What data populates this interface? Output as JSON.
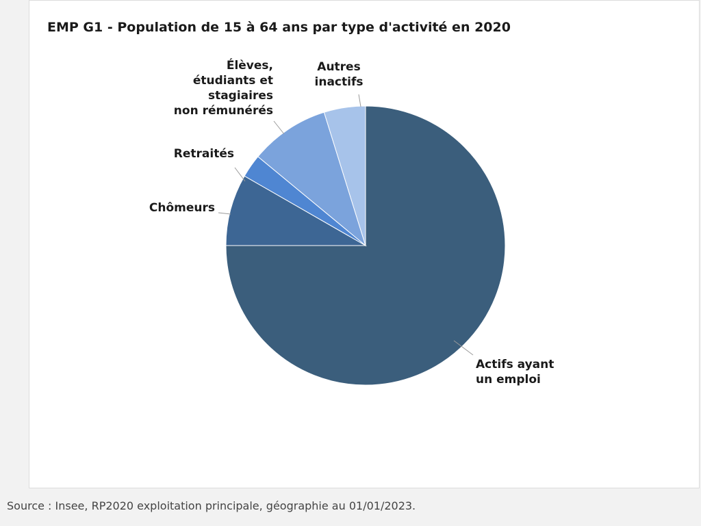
{
  "chart_data": {
    "type": "pie",
    "title": "EMP G1 - Population de 15 à 64 ans par type d'activité en 2020",
    "slices": [
      {
        "label": "Actifs ayant un emploi",
        "lines": [
          "Actifs ayant",
          "un emploi"
        ],
        "value": 75.0,
        "color": "#3b5e7c"
      },
      {
        "label": "Chômeurs",
        "lines": [
          "Chômeurs"
        ],
        "value": 8.3,
        "color": "#3d6694"
      },
      {
        "label": "Retraités",
        "lines": [
          "Retraités"
        ],
        "value": 2.7,
        "color": "#4f86d2"
      },
      {
        "label": "Élèves, étudiants et stagiaires non rémunérés",
        "lines": [
          "Élèves,",
          "étudiants et",
          "stagiaires",
          "non rémunérés"
        ],
        "value": 9.2,
        "color": "#7ba3dc"
      },
      {
        "label": "Autres inactifs",
        "lines": [
          "Autres",
          "inactifs"
        ],
        "value": 4.8,
        "color": "#a7c3ea"
      }
    ],
    "legend": "none",
    "data_labels": "outside"
  },
  "source": "Source : Insee, RP2020 exploitation principale, géographie au 01/01/2023."
}
